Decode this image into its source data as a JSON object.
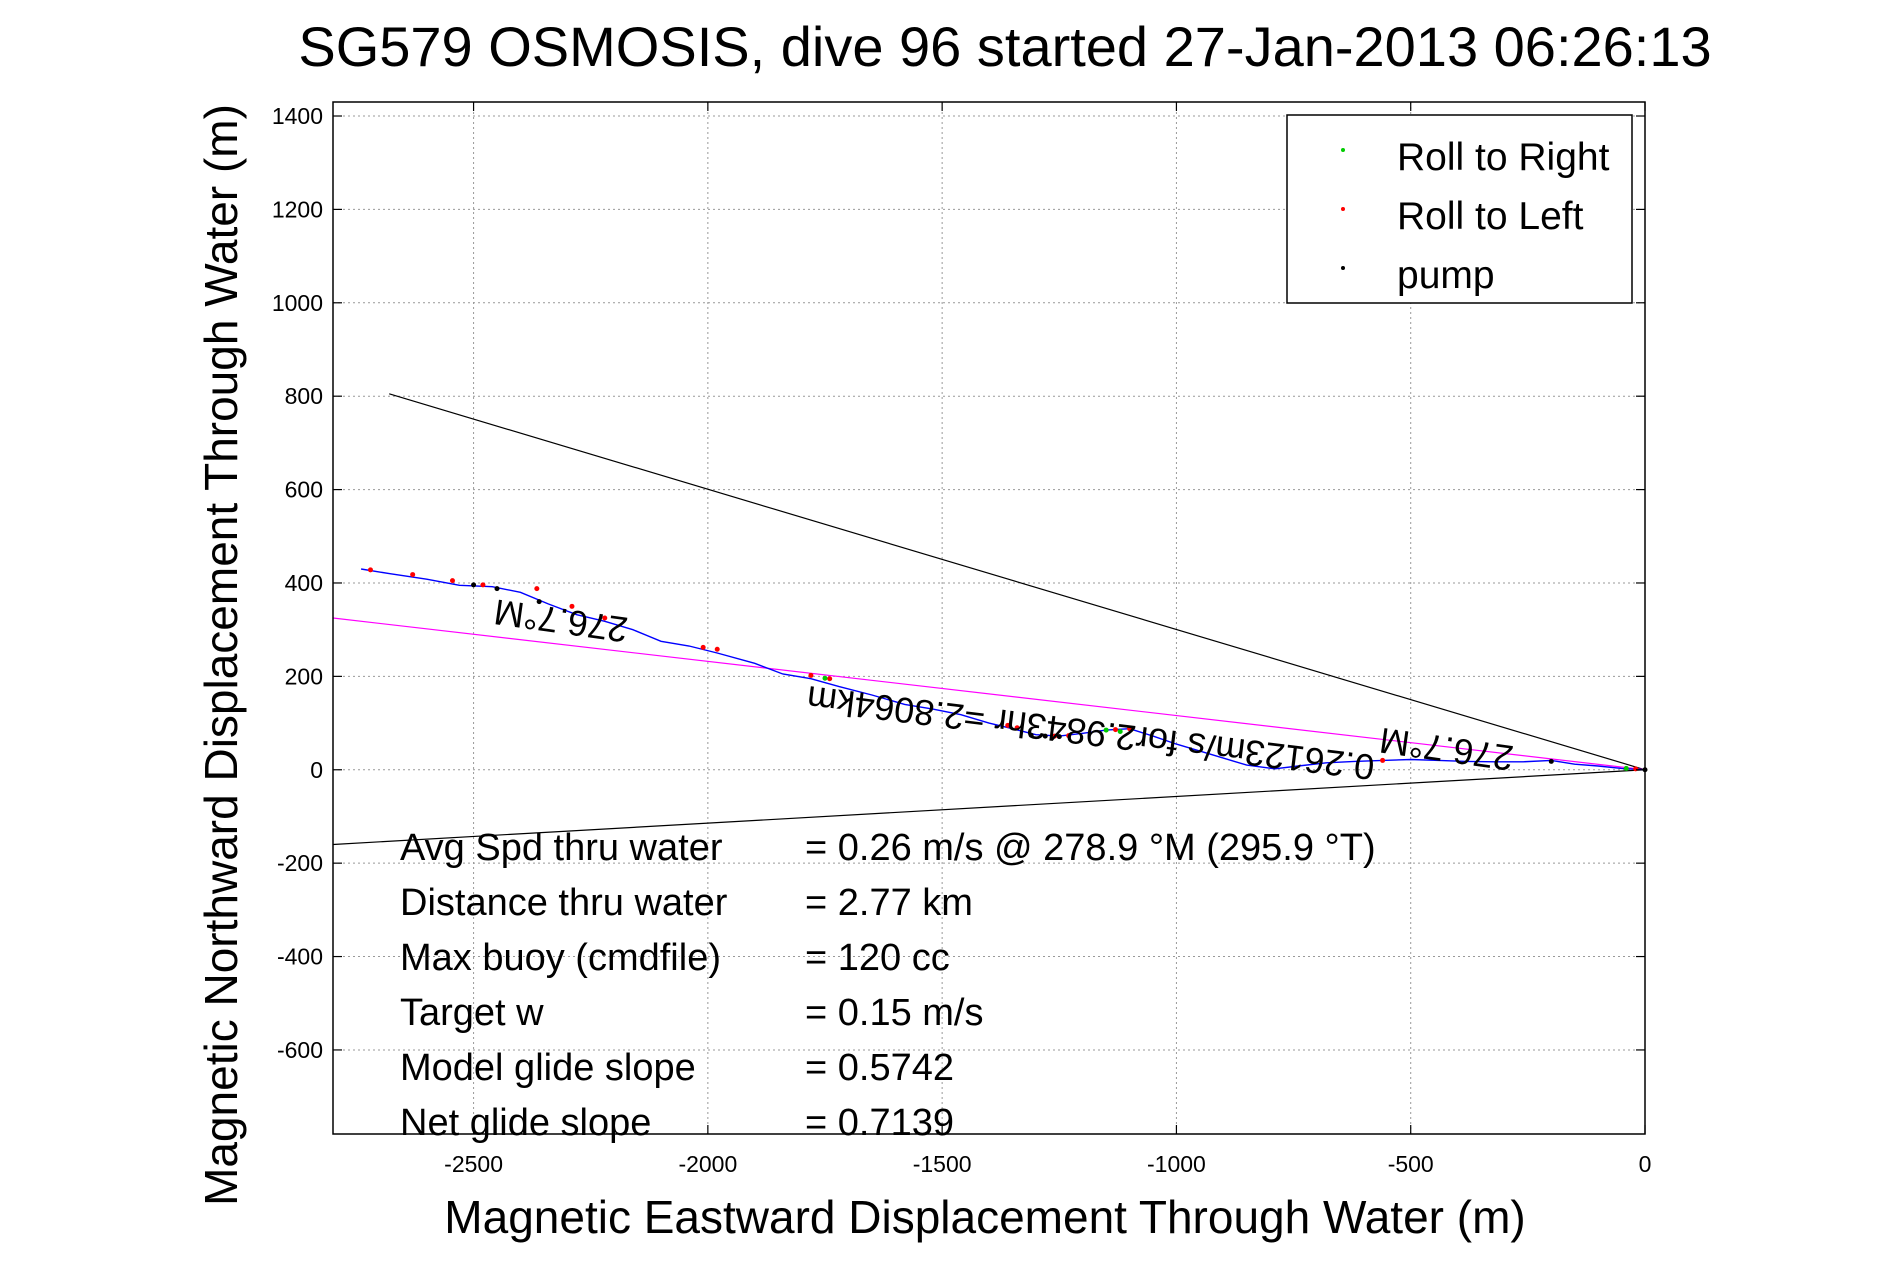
{
  "chart_data": {
    "type": "line",
    "title": "SG579 OSMOSIS, dive 96 started 27-Jan-2013 06:26:13",
    "xlabel": "Magnetic Eastward Displacement Through Water (m)",
    "ylabel": "Magnetic Northward Displacement Through Water (m)",
    "xlim": [
      -2800,
      0
    ],
    "ylim": [
      -780,
      1430
    ],
    "xticks": [
      "-2500",
      "-2000",
      "-1500",
      "-1000",
      "-500",
      "0"
    ],
    "yticks": [
      "1400",
      "1200",
      "1000",
      "800",
      "600",
      "400",
      "200",
      "0",
      "-200",
      "-400",
      "-600"
    ],
    "grid": true,
    "legend_position": "top-right",
    "legend": [
      {
        "label": "Roll to Right",
        "color": "#00cc00"
      },
      {
        "label": "Roll to Left",
        "color": "#ff0000"
      },
      {
        "label": "pump",
        "color": "#000000"
      }
    ],
    "track": {
      "color": "#0000ff",
      "x": [
        -2740,
        -2680,
        -2600,
        -2530,
        -2460,
        -2400,
        -2340,
        -2280,
        -2220,
        -2160,
        -2100,
        -2040,
        -1980,
        -1900,
        -1840,
        -1780,
        -1720,
        -1650,
        -1580,
        -1520,
        -1460,
        -1400,
        -1350,
        -1300,
        -1250,
        -1200,
        -1150,
        -1100,
        -1050,
        -1000,
        -950,
        -900,
        -850,
        -790,
        -740,
        -680,
        -620,
        -560,
        -500,
        -440,
        -380,
        -320,
        -260,
        -200,
        -150,
        -100,
        -50,
        0
      ],
      "y": [
        430,
        420,
        408,
        395,
        392,
        380,
        355,
        332,
        318,
        300,
        275,
        265,
        250,
        228,
        205,
        195,
        178,
        160,
        140,
        130,
        118,
        100,
        88,
        75,
        72,
        78,
        85,
        88,
        72,
        55,
        40,
        25,
        10,
        2,
        8,
        15,
        18,
        20,
        22,
        20,
        18,
        17,
        17,
        20,
        12,
        8,
        3,
        0
      ]
    },
    "markers": {
      "roll_left": [
        [
          -2720,
          428
        ],
        [
          -2630,
          418
        ],
        [
          -2545,
          405
        ],
        [
          -2480,
          396
        ],
        [
          -2365,
          388
        ],
        [
          -2290,
          350
        ],
        [
          -2220,
          325
        ],
        [
          -2010,
          262
        ],
        [
          -1980,
          258
        ],
        [
          -1780,
          202
        ],
        [
          -1740,
          195
        ],
        [
          -1360,
          95
        ],
        [
          -1340,
          90
        ],
        [
          -1260,
          72
        ],
        [
          -1230,
          73
        ],
        [
          -1130,
          86
        ],
        [
          -1100,
          88
        ],
        [
          -560,
          20
        ],
        [
          -20,
          2
        ]
      ],
      "roll_right": [
        [
          -1750,
          196
        ],
        [
          -1150,
          85
        ],
        [
          -1120,
          82
        ],
        [
          -40,
          3
        ]
      ],
      "pump": [
        [
          -2500,
          396
        ],
        [
          -2450,
          388
        ],
        [
          -2360,
          360
        ],
        [
          -1310,
          74
        ],
        [
          -1280,
          72
        ],
        [
          -1250,
          71
        ],
        [
          -200,
          18
        ],
        [
          0,
          0
        ]
      ]
    },
    "reference_lines": [
      {
        "color": "#000000",
        "x": [
          -2680,
          0
        ],
        "y": [
          805,
          0
        ]
      },
      {
        "color": "#000000",
        "x": [
          -2800,
          0
        ],
        "y": [
          -160,
          0
        ]
      },
      {
        "color": "#ff00ff",
        "x": [
          -2800,
          0
        ],
        "y": [
          325,
          0
        ]
      }
    ],
    "annotations": [
      {
        "text": "276.7°M",
        "x": -2310,
        "y": 345,
        "rotation_deg": 188
      },
      {
        "text": "276.7°M",
        "x": -420,
        "y": 70,
        "rotation_deg": 188
      },
      {
        "text": "0.26123m/s for2.9843hr =2.8064km",
        "x": -1180,
        "y": 105,
        "rotation_deg": 187
      }
    ],
    "stats": [
      {
        "label": "Avg Spd thru water",
        "value": "=  0.26 m/s @ 278.9 °M (295.9 °T)"
      },
      {
        "label": "Distance thru water",
        "value": "=  2.77 km"
      },
      {
        "label": "Max buoy (cmdfile)",
        "value": "= 120 cc"
      },
      {
        "label": "Target w",
        "value": "= 0.15 m/s"
      },
      {
        "label": "Model glide slope",
        "value": "= 0.5742"
      },
      {
        "label": "Net glide slope",
        "value": "= 0.7139"
      }
    ]
  }
}
